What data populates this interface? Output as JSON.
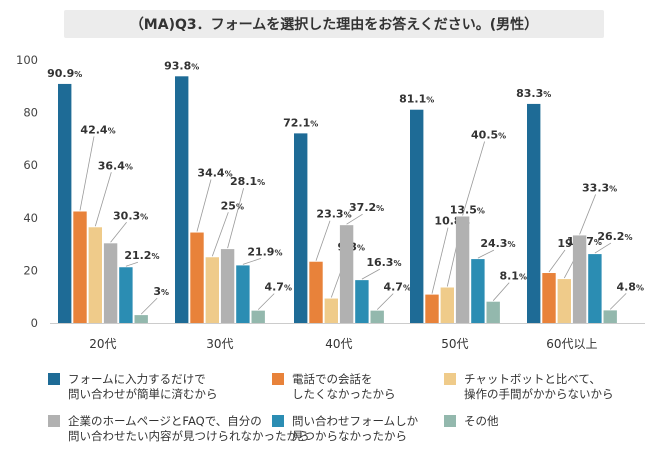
{
  "chart_data": {
    "type": "bar",
    "title": "（MA)Q3．フォームを選択した理由をお答えください。(男性）",
    "categories": [
      "20代",
      "30代",
      "40代",
      "50代",
      "60代以上"
    ],
    "ylim": [
      0,
      100
    ],
    "yticks": [
      0,
      20,
      40,
      60,
      80,
      100
    ],
    "unit": "%",
    "series": [
      {
        "name": "フォームに入力するだけで\n問い合わせが簡単に済むから",
        "color": "#1e6b96",
        "values": [
          90.9,
          93.8,
          72.1,
          81.1,
          83.3
        ]
      },
      {
        "name": "電話での会話を\nしたくなかったから",
        "color": "#e8823a",
        "values": [
          42.4,
          34.4,
          23.3,
          10.8,
          19
        ]
      },
      {
        "name": "チャットボットと比べて、\n操作の手間がかからないから",
        "color": "#efcb8a",
        "values": [
          36.4,
          25,
          9.3,
          13.5,
          16.7
        ]
      },
      {
        "name": "企業のホームページとFAQで、自分の\n問い合わせたい内容が見つけられなかったから",
        "color": "#b1b1b1",
        "values": [
          30.3,
          28.1,
          37.2,
          40.5,
          33.3
        ]
      },
      {
        "name": "問い合わせフォームしか\n見つからなかったから",
        "color": "#2b8db3",
        "values": [
          21.2,
          21.9,
          16.3,
          24.3,
          26.2
        ]
      },
      {
        "name": "その他",
        "color": "#93b8ad",
        "values": [
          3,
          4.7,
          4.7,
          8.1,
          4.8
        ]
      }
    ]
  }
}
